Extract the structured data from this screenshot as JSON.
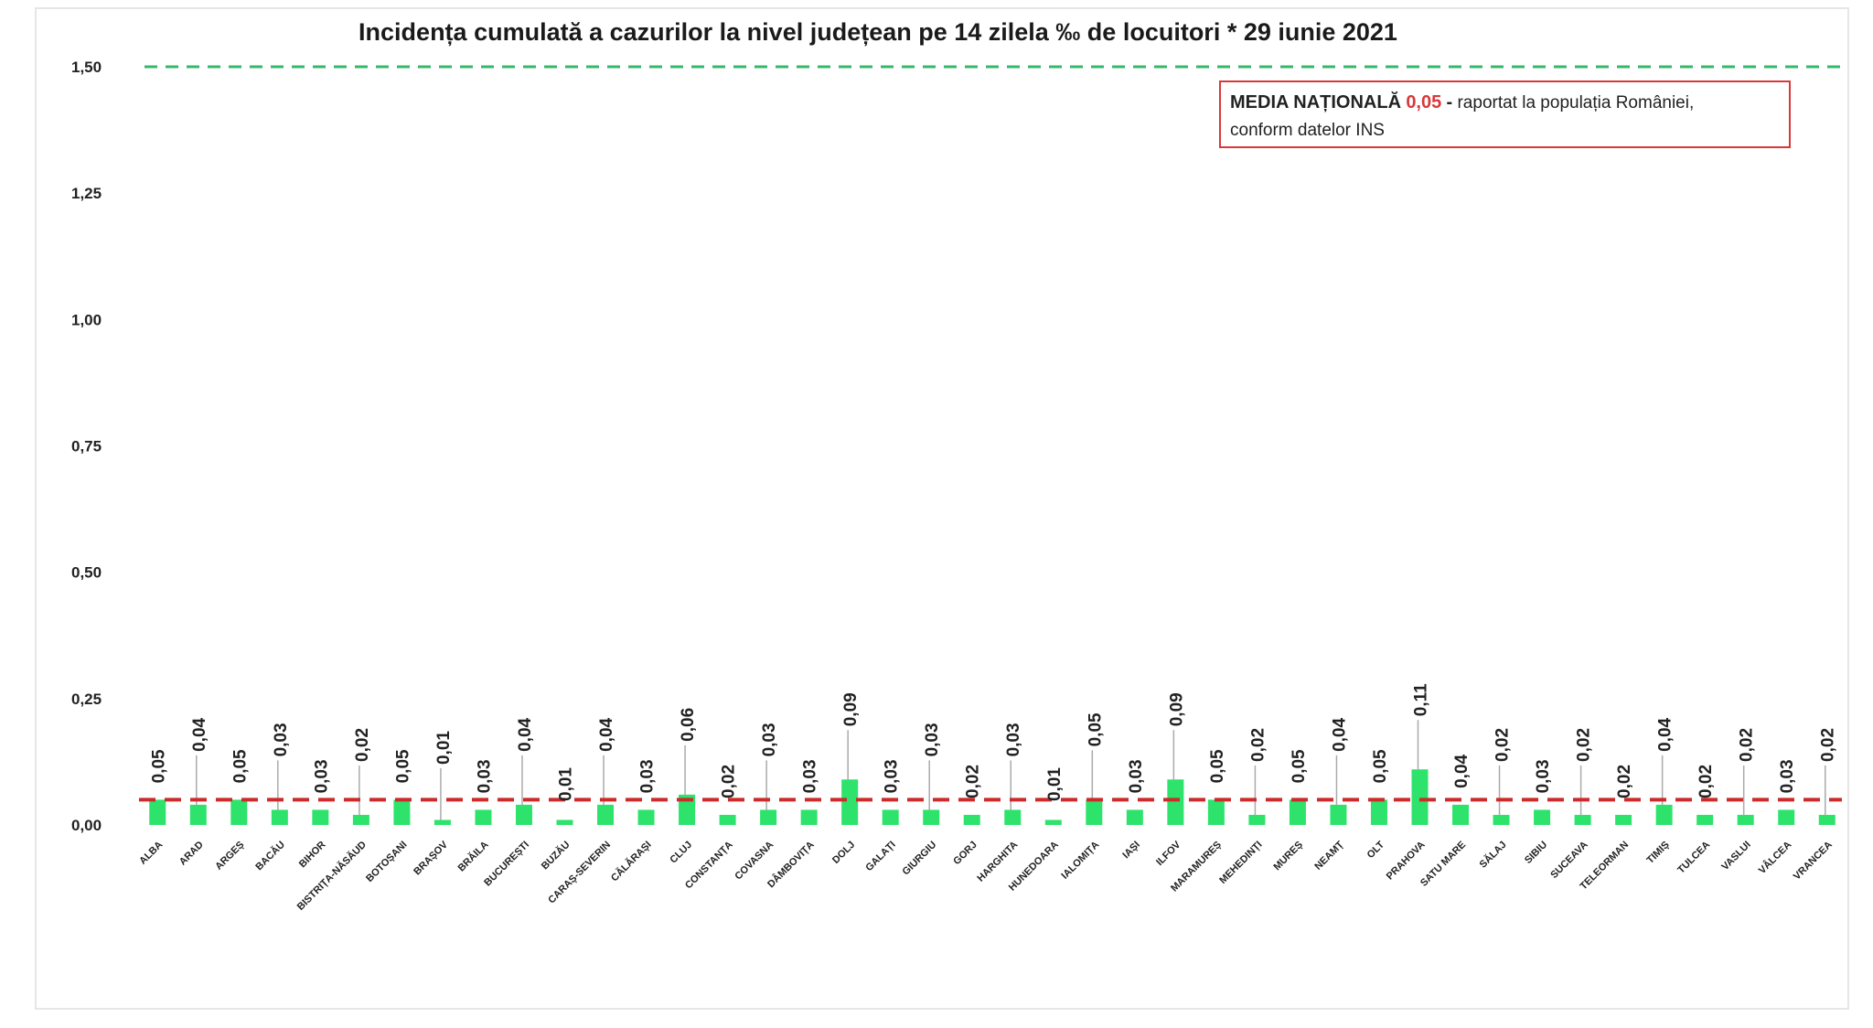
{
  "chart_data": {
    "type": "bar",
    "title": "Incidența cumulată a cazurilor la nivel județean pe 14 zilela ‰ de locuitori *  29 iunie 2021",
    "xlabel": "",
    "ylabel": "",
    "ylim": [
      0,
      1.5
    ],
    "yticks": [
      "0,00",
      "0,25",
      "0,50",
      "0,75",
      "1,00",
      "1,25",
      "1,50"
    ],
    "grid": false,
    "categories": [
      "ALBA",
      "ARAD",
      "ARGEȘ",
      "BACĂU",
      "BIHOR",
      "BISTRIȚA-NĂSĂUD",
      "BOTOȘANI",
      "BRAȘOV",
      "BRĂILA",
      "BUCUREȘTI",
      "BUZĂU",
      "CARAȘ-SEVERIN",
      "CĂLĂRAȘI",
      "CLUJ",
      "CONSTANȚA",
      "COVASNA",
      "DÂMBOVIȚA",
      "DOLJ",
      "GALAȚI",
      "GIURGIU",
      "GORJ",
      "HARGHITA",
      "HUNEDOARA",
      "IALOMIȚA",
      "IAȘI",
      "ILFOV",
      "MARAMUREȘ",
      "MEHEDINȚI",
      "MUREȘ",
      "NEAMȚ",
      "OLT",
      "PRAHOVA",
      "SATU MARE",
      "SĂLAJ",
      "SIBIU",
      "SUCEAVA",
      "TELEORMAN",
      "TIMIȘ",
      "TULCEA",
      "VASLUI",
      "VÂLCEA",
      "VRANCEA"
    ],
    "values": [
      0.05,
      0.04,
      0.05,
      0.03,
      0.03,
      0.02,
      0.05,
      0.01,
      0.03,
      0.04,
      0.01,
      0.04,
      0.03,
      0.06,
      0.02,
      0.03,
      0.03,
      0.09,
      0.03,
      0.03,
      0.02,
      0.03,
      0.01,
      0.05,
      0.03,
      0.09,
      0.05,
      0.02,
      0.05,
      0.04,
      0.05,
      0.11,
      0.04,
      0.02,
      0.03,
      0.02,
      0.02,
      0.04,
      0.02,
      0.02,
      0.03,
      0.02
    ],
    "labels": [
      "0,05",
      "0,04",
      "0,05",
      "0,03",
      "0,03",
      "0,02",
      "0,05",
      "0,01",
      "0,03",
      "0,04",
      "0,01",
      "0,04",
      "0,03",
      "0,06",
      "0,02",
      "0,03",
      "0,03",
      "0,09",
      "0,03",
      "0,03",
      "0,02",
      "0,03",
      "0,01",
      "0,05",
      "0,03",
      "0,09",
      "0,05",
      "0,02",
      "0,05",
      "0,04",
      "0,05",
      "0,11",
      "0,04",
      "0,02",
      "0,03",
      "0,02",
      "0,02",
      "0,04",
      "0,02",
      "0,02",
      "0,03",
      "0,02"
    ],
    "national_average": 0.05,
    "threshold": 1.5,
    "colors": {
      "bar": "#2de36b",
      "average_line": "#cc2b2b",
      "threshold_line": "#35b86a",
      "note_border": "#d9383a",
      "note_value": "#d9383a"
    }
  },
  "note": {
    "bold": "MEDIA NAȚIONALĂ",
    "value": "0,05",
    "dash": "-",
    "text": "raportat la populația României,",
    "text2": "conform datelor INS"
  }
}
